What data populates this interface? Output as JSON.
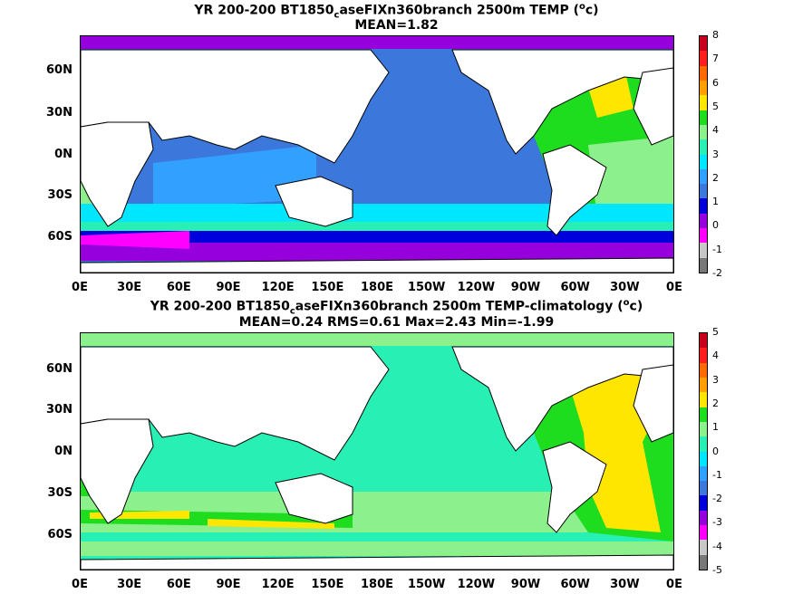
{
  "top_panel": {
    "title_a": "YR 200-200 BT1850",
    "title_sub": "c",
    "title_b": "aseFIXn360branch 2500m TEMP (",
    "title_sup": "o",
    "title_c": "c)",
    "stat_line": "MEAN=1.82",
    "lat_labels": [
      "60N",
      "30N",
      "0N",
      "30S",
      "60S"
    ],
    "lon_labels": [
      "0E",
      "30E",
      "60E",
      "90E",
      "120E",
      "150E",
      "180E",
      "150W",
      "120W",
      "90W",
      "60W",
      "30W",
      "0E"
    ],
    "colorbar_labels": [
      "8",
      "7",
      "6",
      "5",
      "4",
      "3",
      "2",
      "1",
      "0",
      "-1",
      "-2"
    ],
    "colorbar_colors": [
      "#c8001e",
      "#ff1e1e",
      "#ff6a00",
      "#ffa000",
      "#ffe600",
      "#1edc1e",
      "#8cf08c",
      "#28f0b4",
      "#00e6ff",
      "#32a0ff",
      "#3c78dc",
      "#0000dc",
      "#9600dc",
      "#ff00ff",
      "#c8c8c8",
      "#787878"
    ]
  },
  "bottom_panel": {
    "title_a": "YR 200-200 BT1850",
    "title_sub": "c",
    "title_b": "aseFIXn360branch 2500m TEMP-climatology (",
    "title_sup": "o",
    "title_c": "c)",
    "stat_line": "MEAN=0.24   RMS=0.61   Max=2.43   Min=-1.99",
    "lat_labels": [
      "60N",
      "30N",
      "0N",
      "30S",
      "60S"
    ],
    "lon_labels": [
      "0E",
      "30E",
      "60E",
      "90E",
      "120E",
      "150E",
      "180E",
      "150W",
      "120W",
      "90W",
      "60W",
      "30W",
      "0E"
    ],
    "colorbar_labels": [
      "5",
      "4",
      "3",
      "2",
      "1",
      "0",
      "-1",
      "-2",
      "-3",
      "-4",
      "-5"
    ],
    "colorbar_colors": [
      "#c8001e",
      "#ff1e1e",
      "#ff6a00",
      "#ffa000",
      "#ffe600",
      "#1edc1e",
      "#8cf08c",
      "#28f0b4",
      "#00e6ff",
      "#32a0ff",
      "#3c78dc",
      "#0000dc",
      "#9600dc",
      "#ff00ff",
      "#c8c8c8",
      "#787878"
    ]
  }
}
